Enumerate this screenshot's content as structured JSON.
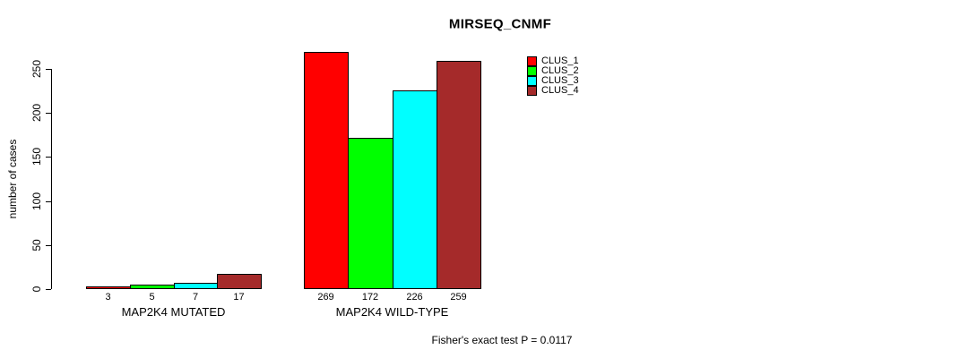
{
  "chart_data": {
    "type": "bar",
    "title": "MIRSEQ_CNMF",
    "ylabel": "number of cases",
    "ylim": [
      0,
      250
    ],
    "yticks": [
      0,
      50,
      100,
      150,
      200,
      250
    ],
    "categories": [
      "MAP2K4 MUTATED",
      "MAP2K4 WILD-TYPE"
    ],
    "series": [
      {
        "name": "CLUS_1",
        "color": "#FF0000",
        "values": [
          3,
          269
        ]
      },
      {
        "name": "CLUS_2",
        "color": "#00FF00",
        "values": [
          5,
          172
        ]
      },
      {
        "name": "CLUS_3",
        "color": "#00FFFF",
        "values": [
          7,
          226
        ]
      },
      {
        "name": "CLUS_4",
        "color": "#A52A2A",
        "values": [
          17,
          259
        ]
      }
    ],
    "bar_value_labels": [
      [
        "3",
        "5",
        "7",
        "17"
      ],
      [
        "269",
        "172",
        "226",
        "259"
      ]
    ],
    "legend_position": "top-right",
    "grid": false,
    "annotation": "Fisher's exact test P = 0.0117"
  }
}
